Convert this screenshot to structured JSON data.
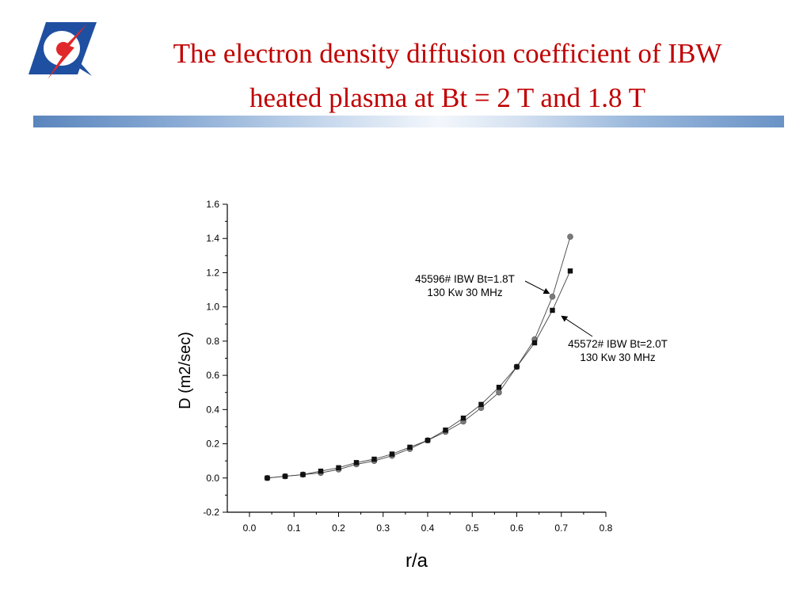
{
  "slide": {
    "title_lines": [
      "The electron density diffusion coefficient of IBW",
      "heated plasma at Bt = 2 T and 1.8 T"
    ],
    "accent_color": "#c00000",
    "logo": {
      "icon": "institute-logo-icon",
      "colors": [
        "#1f4fa0",
        "#e0282a"
      ]
    }
  },
  "chart_data": {
    "type": "scatter",
    "xlabel": "r/a",
    "ylabel": "D (m2/sec)",
    "xlim": [
      -0.05,
      0.8
    ],
    "ylim": [
      -0.2,
      1.6
    ],
    "xticks": [
      "0.0",
      "0.1",
      "0.2",
      "0.3",
      "0.4",
      "0.5",
      "0.6",
      "0.7",
      "0.8"
    ],
    "yticks": [
      "-0.2",
      "0.0",
      "0.2",
      "0.4",
      "0.6",
      "0.8",
      "1.0",
      "1.2",
      "1.4",
      "1.6"
    ],
    "grid": false,
    "series": [
      {
        "marker": "circle",
        "color": "#7a7a7a",
        "x": [
          0.04,
          0.08,
          0.12,
          0.16,
          0.2,
          0.24,
          0.28,
          0.32,
          0.36,
          0.4,
          0.44,
          0.48,
          0.52,
          0.56,
          0.6,
          0.64,
          0.68,
          0.72
        ],
        "y": [
          0.0,
          0.01,
          0.02,
          0.03,
          0.05,
          0.08,
          0.1,
          0.13,
          0.17,
          0.22,
          0.27,
          0.33,
          0.41,
          0.5,
          0.65,
          0.81,
          1.06,
          1.41
        ]
      },
      {
        "marker": "square",
        "color": "#111111",
        "x": [
          0.04,
          0.08,
          0.12,
          0.16,
          0.2,
          0.24,
          0.28,
          0.32,
          0.36,
          0.4,
          0.44,
          0.48,
          0.52,
          0.56,
          0.6,
          0.64,
          0.68,
          0.72
        ],
        "y": [
          0.0,
          0.01,
          0.02,
          0.04,
          0.06,
          0.09,
          0.11,
          0.14,
          0.18,
          0.22,
          0.28,
          0.35,
          0.43,
          0.53,
          0.65,
          0.79,
          0.98,
          1.21
        ]
      }
    ],
    "annotations": [
      {
        "lines": [
          "45596# IBW Bt=1.8T",
          "130 Kw 30 MHz"
        ],
        "arrow_to": [
          0.68,
          1.06
        ]
      },
      {
        "lines": [
          "45572# IBW Bt=2.0T",
          "130 Kw 30 MHz"
        ],
        "arrow_to": [
          0.69,
          0.96
        ]
      }
    ]
  }
}
